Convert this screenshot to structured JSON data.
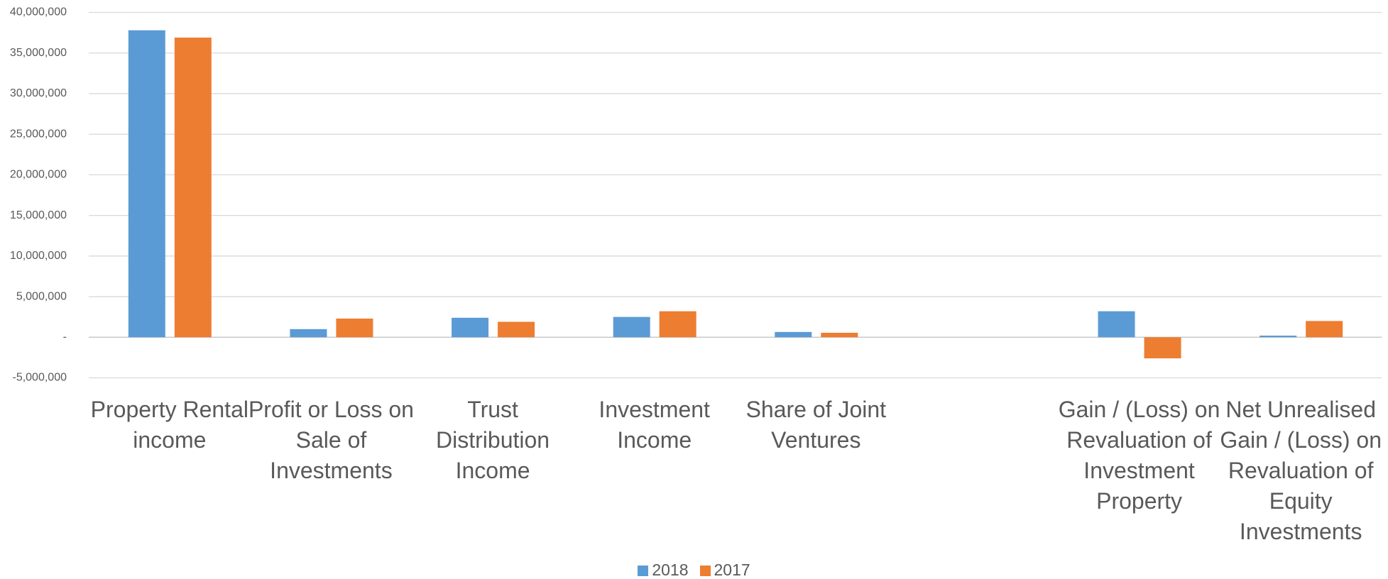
{
  "chart_data": {
    "type": "bar",
    "categories": [
      "Property Rental income",
      "Profit or Loss on Sale of Investments",
      "Trust Distribution Income",
      "Investment Income",
      "Share of Joint Ventures",
      null,
      "Gain / (Loss) on Revaluation of Investment Property",
      "Net Unrealised Gain / (Loss) on Revaluation of Equity Investments"
    ],
    "series": [
      {
        "name": "2018",
        "color": "#5b9bd5",
        "values": [
          37800000,
          1000000,
          2400000,
          2500000,
          650000,
          null,
          3200000,
          200000
        ]
      },
      {
        "name": "2017",
        "color": "#ed7d31",
        "values": [
          36900000,
          2300000,
          1900000,
          3200000,
          550000,
          null,
          -2600000,
          2000000
        ]
      }
    ],
    "ylim": [
      -5000000,
      40000000
    ],
    "yticks": [
      {
        "value": -5000000,
        "label": "-5,000,000"
      },
      {
        "value": 0,
        "label": "-"
      },
      {
        "value": 5000000,
        "label": "5,000,000"
      },
      {
        "value": 10000000,
        "label": "10,000,000"
      },
      {
        "value": 15000000,
        "label": "15,000,000"
      },
      {
        "value": 20000000,
        "label": "20,000,000"
      },
      {
        "value": 25000000,
        "label": "25,000,000"
      },
      {
        "value": 30000000,
        "label": "30,000,000"
      },
      {
        "value": 35000000,
        "label": "35,000,000"
      },
      {
        "value": 40000000,
        "label": "40,000,000"
      }
    ],
    "grid": true,
    "legend": "bottom"
  }
}
